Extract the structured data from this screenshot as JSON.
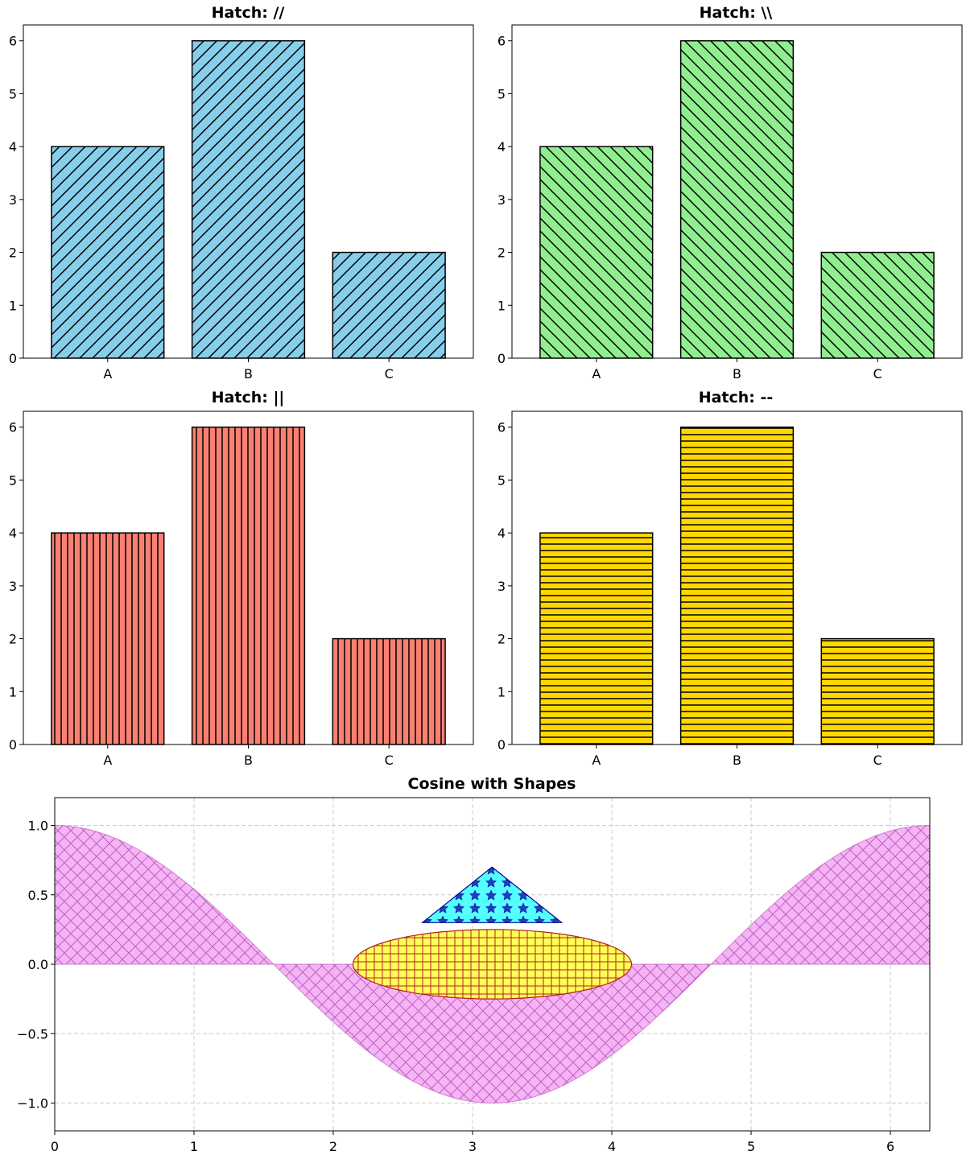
{
  "chart_data": [
    {
      "type": "bar",
      "title": "Hatch: //",
      "categories": [
        "A",
        "B",
        "C"
      ],
      "values": [
        4,
        6,
        2
      ],
      "ylim": [
        0,
        6.3
      ],
      "yticks": [
        "0",
        "1",
        "2",
        "3",
        "4",
        "5",
        "6"
      ],
      "hatch": "//",
      "color": "#87ceeb",
      "edgecolor": "#000000",
      "grid": false
    },
    {
      "type": "bar",
      "title": "Hatch: \\\\",
      "categories": [
        "A",
        "B",
        "C"
      ],
      "values": [
        4,
        6,
        2
      ],
      "ylim": [
        0,
        6.3
      ],
      "yticks": [
        "0",
        "1",
        "2",
        "3",
        "4",
        "5",
        "6"
      ],
      "hatch": "\\\\",
      "color": "#90ee90",
      "edgecolor": "#000000",
      "grid": false
    },
    {
      "type": "bar",
      "title": "Hatch: ||",
      "categories": [
        "A",
        "B",
        "C"
      ],
      "values": [
        4,
        6,
        2
      ],
      "ylim": [
        0,
        6.3
      ],
      "yticks": [
        "0",
        "1",
        "2",
        "3",
        "4",
        "5",
        "6"
      ],
      "hatch": "||",
      "color": "#fa8072",
      "edgecolor": "#000000",
      "grid": false
    },
    {
      "type": "bar",
      "title": "Hatch: --",
      "categories": [
        "A",
        "B",
        "C"
      ],
      "values": [
        4,
        6,
        2
      ],
      "ylim": [
        0,
        6.3
      ],
      "yticks": [
        "0",
        "1",
        "2",
        "3",
        "4",
        "5",
        "6"
      ],
      "hatch": "--",
      "color": "#ffd700",
      "edgecolor": "#000000",
      "grid": false
    },
    {
      "type": "area",
      "title": "Cosine with Shapes",
      "xlim": [
        0,
        6.283
      ],
      "ylim": [
        -1.2,
        1.2
      ],
      "xticks": [
        "0",
        "1",
        "2",
        "3",
        "4",
        "5",
        "6"
      ],
      "yticks": [
        "1.0",
        "0.5",
        "0.0",
        "−0.5",
        "−1.0"
      ],
      "grid": true,
      "series": [
        {
          "function": "cos(x)",
          "x_range": [
            0,
            6.283
          ],
          "fill_to": 0,
          "color": "#ee82ee",
          "alpha": 0.6,
          "hatch": "xx"
        }
      ],
      "shapes": [
        {
          "kind": "ellipse",
          "center": [
            3.1416,
            0
          ],
          "width": 2.0,
          "height": 0.5,
          "facecolor": "#ffff55",
          "edgecolor": "#b22222",
          "hatch": "+"
        },
        {
          "kind": "triangle",
          "vertices": [
            [
              2.64,
              0.3
            ],
            [
              3.64,
              0.3
            ],
            [
              3.14,
              0.7
            ]
          ],
          "facecolor": "#55ffff",
          "edgecolor": "#00008b",
          "hatch": "*"
        }
      ]
    }
  ]
}
